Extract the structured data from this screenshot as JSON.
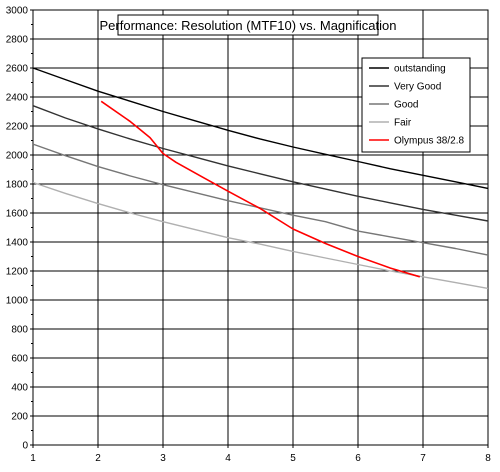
{
  "chart_data": {
    "type": "line",
    "title": "Performance: Resolution (MTF10) vs. Magnification",
    "xlim": [
      1,
      8
    ],
    "ylim": [
      0,
      3000
    ],
    "x_ticks": [
      1,
      2,
      3,
      4,
      5,
      6,
      7,
      8
    ],
    "y_ticks": [
      0,
      200,
      400,
      600,
      800,
      1000,
      1200,
      1400,
      1600,
      1800,
      2000,
      2200,
      2400,
      2600,
      2800,
      3000
    ],
    "grid": true,
    "legend_position": "top-right",
    "series": [
      {
        "name": "outstanding",
        "color": "#000000",
        "x": [
          1,
          1.5,
          2,
          2.5,
          3,
          3.5,
          4,
          4.5,
          5,
          5.5,
          6,
          6.5,
          7,
          7.5,
          8
        ],
        "y": [
          2600,
          2520,
          2440,
          2370,
          2300,
          2235,
          2170,
          2110,
          2055,
          2005,
          1955,
          1905,
          1860,
          1815,
          1770
        ]
      },
      {
        "name": "Very Good",
        "color": "#333333",
        "x": [
          1,
          1.5,
          2,
          2.5,
          3,
          3.5,
          4,
          4.5,
          5,
          5.5,
          6,
          6.5,
          7,
          7.5,
          8
        ],
        "y": [
          2340,
          2255,
          2180,
          2110,
          2045,
          1985,
          1925,
          1870,
          1815,
          1765,
          1715,
          1670,
          1625,
          1585,
          1545
        ]
      },
      {
        "name": "Good",
        "color": "#777777",
        "x": [
          1,
          1.5,
          2,
          2.5,
          3,
          3.5,
          4,
          4.5,
          5,
          5.5,
          6,
          6.5,
          7,
          7.5,
          8
        ],
        "y": [
          2075,
          1995,
          1920,
          1855,
          1795,
          1740,
          1685,
          1635,
          1585,
          1540,
          1475,
          1435,
          1395,
          1355,
          1310
        ]
      },
      {
        "name": "Fair",
        "color": "#b0b0b0",
        "x": [
          1,
          1.5,
          2,
          2.5,
          3,
          3.5,
          4,
          4.5,
          5,
          5.5,
          6,
          6.5,
          7,
          7.5,
          8
        ],
        "y": [
          1810,
          1735,
          1665,
          1600,
          1540,
          1485,
          1430,
          1385,
          1335,
          1290,
          1245,
          1200,
          1160,
          1120,
          1080
        ]
      },
      {
        "name": "Olympus 38/2.8",
        "color": "#ff0000",
        "x": [
          2.05,
          2.5,
          2.8,
          3,
          3.2,
          3.6,
          4,
          4.5,
          5,
          5.5,
          6,
          6.5,
          6.95
        ],
        "y": [
          2370,
          2230,
          2120,
          2010,
          1950,
          1850,
          1750,
          1630,
          1490,
          1390,
          1300,
          1220,
          1160
        ]
      }
    ]
  }
}
